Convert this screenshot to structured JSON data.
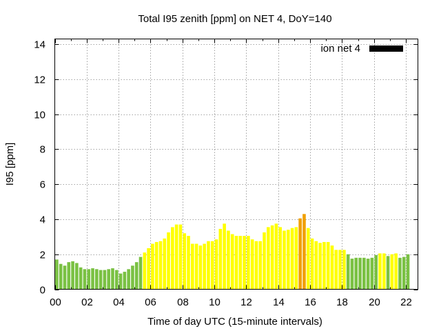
{
  "chart_data": {
    "type": "bar",
    "title": "Total I95 zenith [ppm] on NET 4, DoY=140",
    "xlabel": "Time of day UTC (15-minute intervals)",
    "ylabel": "I95 [ppm]",
    "xlim": [
      0,
      22.75
    ],
    "ylim": [
      0,
      14.3
    ],
    "x_ticks": [
      "00",
      "02",
      "04",
      "06",
      "08",
      "10",
      "12",
      "14",
      "16",
      "18",
      "20",
      "22"
    ],
    "y_ticks": [
      "0",
      "2",
      "4",
      "6",
      "8",
      "10",
      "12",
      "14"
    ],
    "grid": true,
    "legend": {
      "label": "ion net 4",
      "color": "#000000",
      "placement": "top-right"
    },
    "interval_hours": 0.25,
    "colors": {
      "green": "#7ac143",
      "yellow": "#ffff00",
      "orange": "#f0a000"
    },
    "values": [
      1.7,
      1.45,
      1.35,
      1.55,
      1.6,
      1.5,
      1.25,
      1.15,
      1.15,
      1.2,
      1.15,
      1.1,
      1.1,
      1.15,
      1.2,
      1.1,
      0.9,
      1.0,
      1.15,
      1.35,
      1.55,
      1.85,
      2.1,
      2.35,
      2.6,
      2.7,
      2.75,
      2.9,
      3.25,
      3.55,
      3.7,
      3.7,
      3.2,
      3.05,
      2.6,
      2.6,
      2.5,
      2.6,
      2.75,
      2.75,
      2.85,
      3.45,
      3.75,
      3.35,
      3.15,
      3.05,
      3.05,
      3.05,
      3.05,
      2.85,
      2.75,
      2.75,
      3.25,
      3.55,
      3.65,
      3.75,
      3.55,
      3.35,
      3.4,
      3.5,
      3.55,
      4.05,
      4.3,
      3.5,
      2.9,
      2.75,
      2.65,
      2.7,
      2.7,
      2.5,
      2.25,
      2.25,
      2.25,
      2.0,
      1.75,
      1.8,
      1.8,
      1.8,
      1.75,
      1.8,
      1.95,
      2.05,
      2.05,
      1.9,
      2.0,
      2.05,
      1.8,
      1.85,
      2.0
    ],
    "bar_colors": [
      "green",
      "green",
      "green",
      "green",
      "green",
      "green",
      "green",
      "green",
      "green",
      "green",
      "green",
      "green",
      "green",
      "green",
      "green",
      "green",
      "green",
      "green",
      "green",
      "green",
      "green",
      "green",
      "yellow",
      "yellow",
      "yellow",
      "yellow",
      "yellow",
      "yellow",
      "yellow",
      "yellow",
      "yellow",
      "yellow",
      "yellow",
      "yellow",
      "yellow",
      "yellow",
      "yellow",
      "yellow",
      "yellow",
      "yellow",
      "yellow",
      "yellow",
      "yellow",
      "yellow",
      "yellow",
      "yellow",
      "yellow",
      "yellow",
      "yellow",
      "yellow",
      "yellow",
      "yellow",
      "yellow",
      "yellow",
      "yellow",
      "yellow",
      "yellow",
      "yellow",
      "yellow",
      "yellow",
      "yellow",
      "orange",
      "orange",
      "yellow",
      "yellow",
      "yellow",
      "yellow",
      "yellow",
      "yellow",
      "yellow",
      "yellow",
      "yellow",
      "yellow",
      "green",
      "green",
      "green",
      "green",
      "green",
      "green",
      "green",
      "green",
      "yellow",
      "yellow",
      "green",
      "yellow",
      "yellow",
      "green",
      "green",
      "green"
    ]
  }
}
